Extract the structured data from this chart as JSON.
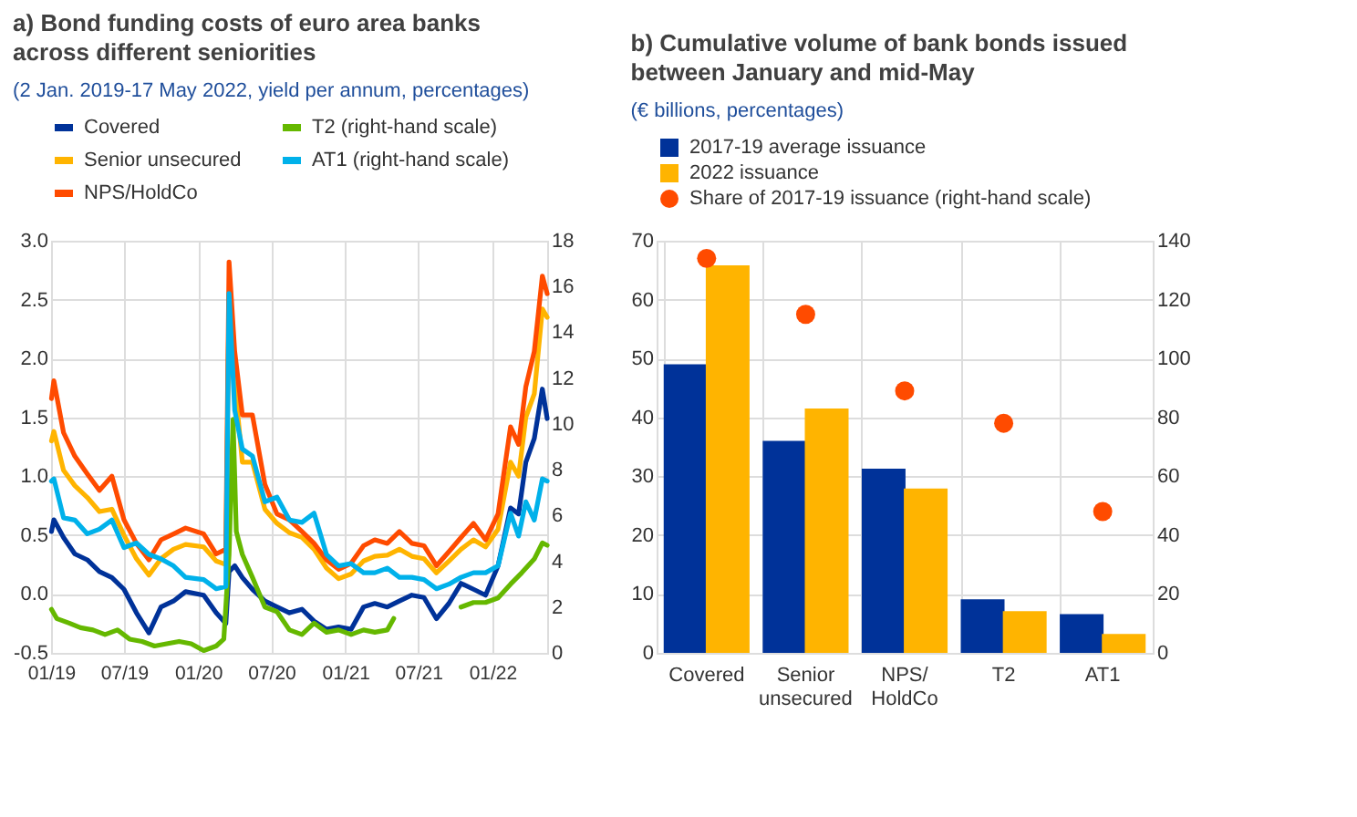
{
  "chart_data": [
    {
      "type": "line",
      "title": "a) Bond funding costs of euro area banks across different seniorities",
      "subtitle": "(2 Jan. 2019-17 May 2022, yield per annum, percentages)",
      "x": [
        "2019-01-02",
        "2019-01-08",
        "2019-02-01",
        "2019-03-01",
        "2019-04-01",
        "2019-05-01",
        "2019-06-01",
        "2019-07-01",
        "2019-08-01",
        "2019-09-01",
        "2019-10-01",
        "2019-11-01",
        "2019-12-01",
        "2020-01-15",
        "2020-02-15",
        "2020-03-10",
        "2020-03-18",
        "2020-04-01",
        "2020-04-20",
        "2020-05-15",
        "2020-06-15",
        "2020-07-15",
        "2020-08-15",
        "2020-09-15",
        "2020-10-15",
        "2020-11-15",
        "2020-12-15",
        "2021-01-15",
        "2021-02-15",
        "2021-03-15",
        "2021-04-15",
        "2021-05-15",
        "2021-06-15",
        "2021-07-15",
        "2021-08-15",
        "2021-09-15",
        "2021-10-15",
        "2021-11-15",
        "2021-12-15",
        "2022-01-15",
        "2022-02-15",
        "2022-03-07",
        "2022-03-25",
        "2022-04-15",
        "2022-05-05",
        "2022-05-17"
      ],
      "series": [
        {
          "name": "Covered",
          "color": "#003299",
          "values": [
            0.53,
            0.63,
            0.48,
            0.34,
            0.29,
            0.19,
            0.14,
            0.04,
            -0.16,
            -0.33,
            -0.11,
            -0.06,
            0.02,
            -0.01,
            -0.16,
            -0.25,
            0.19,
            0.24,
            0.14,
            0.04,
            -0.06,
            -0.11,
            -0.16,
            -0.13,
            -0.23,
            -0.3,
            -0.28,
            -0.3,
            -0.11,
            -0.08,
            -0.11,
            -0.06,
            -0.01,
            -0.03,
            -0.21,
            -0.08,
            0.09,
            0.04,
            -0.01,
            0.24,
            0.73,
            0.68,
            1.12,
            1.32,
            1.74,
            1.49
          ]
        },
        {
          "name": "T2 (right-hand scale)",
          "color": "#65b800",
          "axis": "y2",
          "x": [
            "2019-01-02",
            "2019-01-15",
            "2019-02-15",
            "2019-03-15",
            "2019-04-15",
            "2019-05-15",
            "2019-06-15",
            "2019-07-15",
            "2019-08-15",
            "2019-09-15",
            "2019-10-15",
            "2019-11-15",
            "2019-12-15",
            "2020-01-15",
            "2020-02-15",
            "2020-03-05",
            "2020-03-18",
            "2020-03-28",
            "2020-04-05",
            "2020-04-20",
            "2020-05-15",
            "2020-06-15",
            "2020-07-15",
            "2020-08-15",
            "2020-09-15",
            "2020-10-15",
            "2020-11-15",
            "2020-12-15",
            "2021-01-15",
            "2021-02-15",
            "2021-03-15",
            "2021-04-15",
            "2021-05-01",
            "2021-07-01",
            "2021-10-15",
            "2021-11-15",
            "2021-12-15",
            "2022-01-15",
            "2022-02-15",
            "2022-03-15",
            "2022-04-15",
            "2022-05-05",
            "2022-05-17"
          ],
          "values": [
            1.9,
            1.5,
            1.3,
            1.1,
            1.0,
            0.8,
            1.0,
            0.6,
            0.5,
            0.3,
            0.4,
            0.5,
            0.4,
            0.1,
            0.3,
            0.6,
            4.3,
            10.2,
            5.3,
            4.3,
            3.3,
            2.0,
            1.8,
            1.0,
            0.8,
            1.3,
            0.9,
            1.0,
            0.8,
            1.0,
            0.9,
            1.0,
            1.5,
            null,
            2.0,
            2.2,
            2.2,
            2.4,
            3.0,
            3.5,
            4.1,
            4.8,
            4.7
          ]
        },
        {
          "name": "Senior unsecured",
          "color": "#ffb400",
          "values": [
            1.3,
            1.38,
            1.05,
            0.92,
            0.82,
            0.7,
            0.72,
            0.5,
            0.3,
            0.16,
            0.3,
            0.38,
            0.42,
            0.4,
            0.28,
            0.25,
            2.55,
            1.8,
            1.12,
            1.12,
            0.72,
            0.6,
            0.52,
            0.48,
            0.38,
            0.22,
            0.13,
            0.17,
            0.28,
            0.32,
            0.33,
            0.38,
            0.32,
            0.3,
            0.18,
            0.28,
            0.38,
            0.46,
            0.4,
            0.55,
            1.12,
            1.0,
            1.5,
            1.7,
            2.42,
            2.35
          ]
        },
        {
          "name": "AT1 (right-hand scale)",
          "color": "#00b1ea",
          "axis": "y2",
          "values": [
            7.5,
            7.6,
            5.9,
            5.8,
            5.2,
            5.4,
            5.8,
            4.6,
            4.8,
            4.3,
            4.1,
            3.8,
            3.3,
            3.2,
            2.8,
            2.9,
            15.7,
            10.6,
            8.9,
            8.6,
            6.6,
            6.8,
            5.8,
            5.7,
            6.1,
            4.3,
            3.8,
            3.9,
            3.5,
            3.5,
            3.7,
            3.3,
            3.3,
            3.2,
            2.8,
            3.0,
            3.3,
            3.5,
            3.5,
            3.8,
            6.1,
            5.1,
            6.6,
            5.8,
            7.6,
            7.5
          ]
        },
        {
          "name": "NPS/HoldCo",
          "color": "#ff4b00",
          "values": [
            1.66,
            1.81,
            1.37,
            1.17,
            1.02,
            0.88,
            1.0,
            0.63,
            0.43,
            0.29,
            0.46,
            0.51,
            0.56,
            0.51,
            0.34,
            0.38,
            2.82,
            2.06,
            1.52,
            1.52,
            0.93,
            0.68,
            0.63,
            0.53,
            0.43,
            0.29,
            0.21,
            0.26,
            0.41,
            0.46,
            0.43,
            0.53,
            0.43,
            0.41,
            0.24,
            0.36,
            0.48,
            0.6,
            0.46,
            0.68,
            1.42,
            1.27,
            1.76,
            2.06,
            2.7,
            2.55
          ]
        }
      ],
      "xlim": [
        "2019-01-01",
        "2022-05-17"
      ],
      "xticks": [
        {
          "value": "2019-01-01",
          "label": "01/19"
        },
        {
          "value": "2019-07-01",
          "label": "07/19"
        },
        {
          "value": "2020-01-01",
          "label": "01/20"
        },
        {
          "value": "2020-07-01",
          "label": "07/20"
        },
        {
          "value": "2021-01-01",
          "label": "01/21"
        },
        {
          "value": "2021-07-01",
          "label": "07/21"
        },
        {
          "value": "2022-01-01",
          "label": "01/22"
        }
      ],
      "ylim": [
        -0.5,
        3.0
      ],
      "yticks": [
        {
          "value": -0.5,
          "label": "-0.5"
        },
        {
          "value": 0,
          "label": "0.0"
        },
        {
          "value": 0.5,
          "label": "0.5"
        },
        {
          "value": 1,
          "label": "1.0"
        },
        {
          "value": 1.5,
          "label": "1.5"
        },
        {
          "value": 2,
          "label": "2.0"
        },
        {
          "value": 2.5,
          "label": "2.5"
        },
        {
          "value": 3,
          "label": "3.0"
        }
      ],
      "y2lim": [
        0,
        18
      ],
      "y2ticks": [
        0,
        2,
        4,
        6,
        8,
        10,
        12,
        14,
        16,
        18
      ],
      "grid": true,
      "legend": "top",
      "line_style": "solid",
      "marker": "none"
    },
    {
      "type": "bar",
      "title": "b) Cumulative volume of bank bonds issued between January and mid-May",
      "subtitle": "(€ billions, percentages)",
      "categories": [
        "Covered",
        "Senior\nunsecured",
        "NPS/\nHoldCo",
        "T2",
        "AT1"
      ],
      "series": [
        {
          "name": "2017-19 average issuance",
          "color": "#003299",
          "values": [
            49,
            36,
            31.3,
            9.1,
            6.6
          ]
        },
        {
          "name": "2022 issuance",
          "color": "#ffb400",
          "values": [
            65.8,
            41.5,
            27.9,
            7.1,
            3.2
          ]
        },
        {
          "name": "Share of 2017-19 issuance (right-hand scale)",
          "color": "#ff4b00",
          "type": "scatter",
          "axis": "y2",
          "marker": "circle",
          "values": [
            134,
            115,
            89,
            78,
            48
          ]
        }
      ],
      "ylim": [
        0,
        70
      ],
      "yticks": [
        0,
        10,
        20,
        30,
        40,
        50,
        60,
        70
      ],
      "y2lim": [
        0,
        140
      ],
      "y2ticks": [
        0,
        20,
        40,
        60,
        80,
        100,
        120,
        140
      ],
      "grid": true,
      "legend": "top"
    }
  ]
}
